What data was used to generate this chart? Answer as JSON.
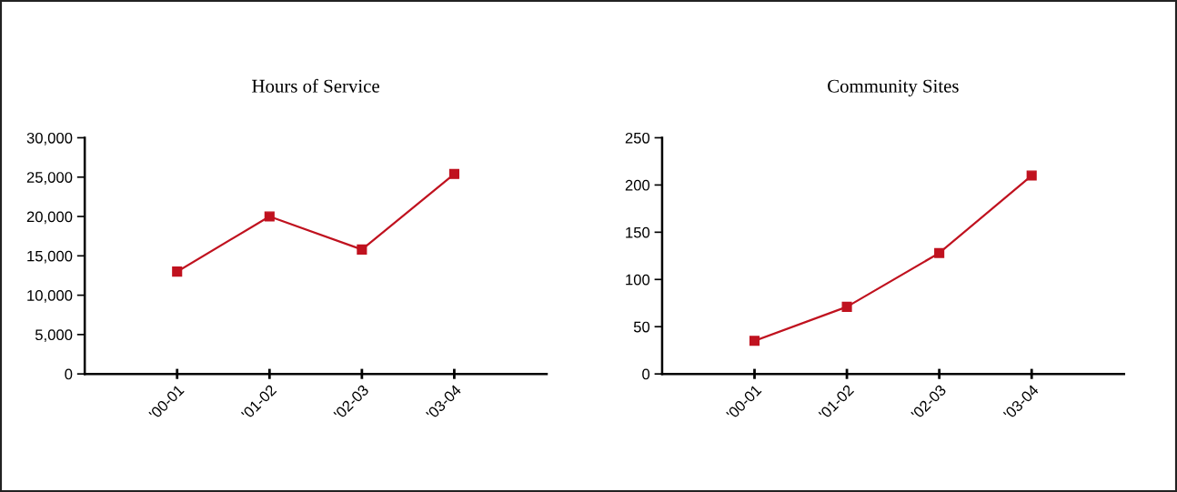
{
  "chart_data": [
    {
      "type": "line",
      "title": "Hours of Service",
      "categories": [
        "'00-01",
        "'01-02",
        "'02-03",
        "'03-04"
      ],
      "series": [
        {
          "color": "#c0121f",
          "values": [
            13000,
            20000,
            15800,
            25400
          ]
        }
      ],
      "ylim": [
        0,
        30000
      ],
      "yticks": [
        {
          "value": 0,
          "label": "0"
        },
        {
          "value": 5000,
          "label": "5,000"
        },
        {
          "value": 10000,
          "label": "10,000"
        },
        {
          "value": 15000,
          "label": "15,000"
        },
        {
          "value": 20000,
          "label": "20,000"
        },
        {
          "value": 25000,
          "label": "25,000"
        },
        {
          "value": 30000,
          "label": "30,000"
        }
      ],
      "grid": false,
      "marker": "square",
      "line_style": "solid"
    },
    {
      "type": "line",
      "title": "Community Sites",
      "categories": [
        "'00-01",
        "'01-02",
        "'02-03",
        "'03-04"
      ],
      "series": [
        {
          "color": "#c0121f",
          "values": [
            35,
            71,
            128,
            210
          ]
        }
      ],
      "ylim": [
        0,
        250
      ],
      "yticks": [
        0,
        50,
        100,
        150,
        200,
        250
      ],
      "grid": false,
      "marker": "square",
      "line_style": "solid"
    }
  ]
}
